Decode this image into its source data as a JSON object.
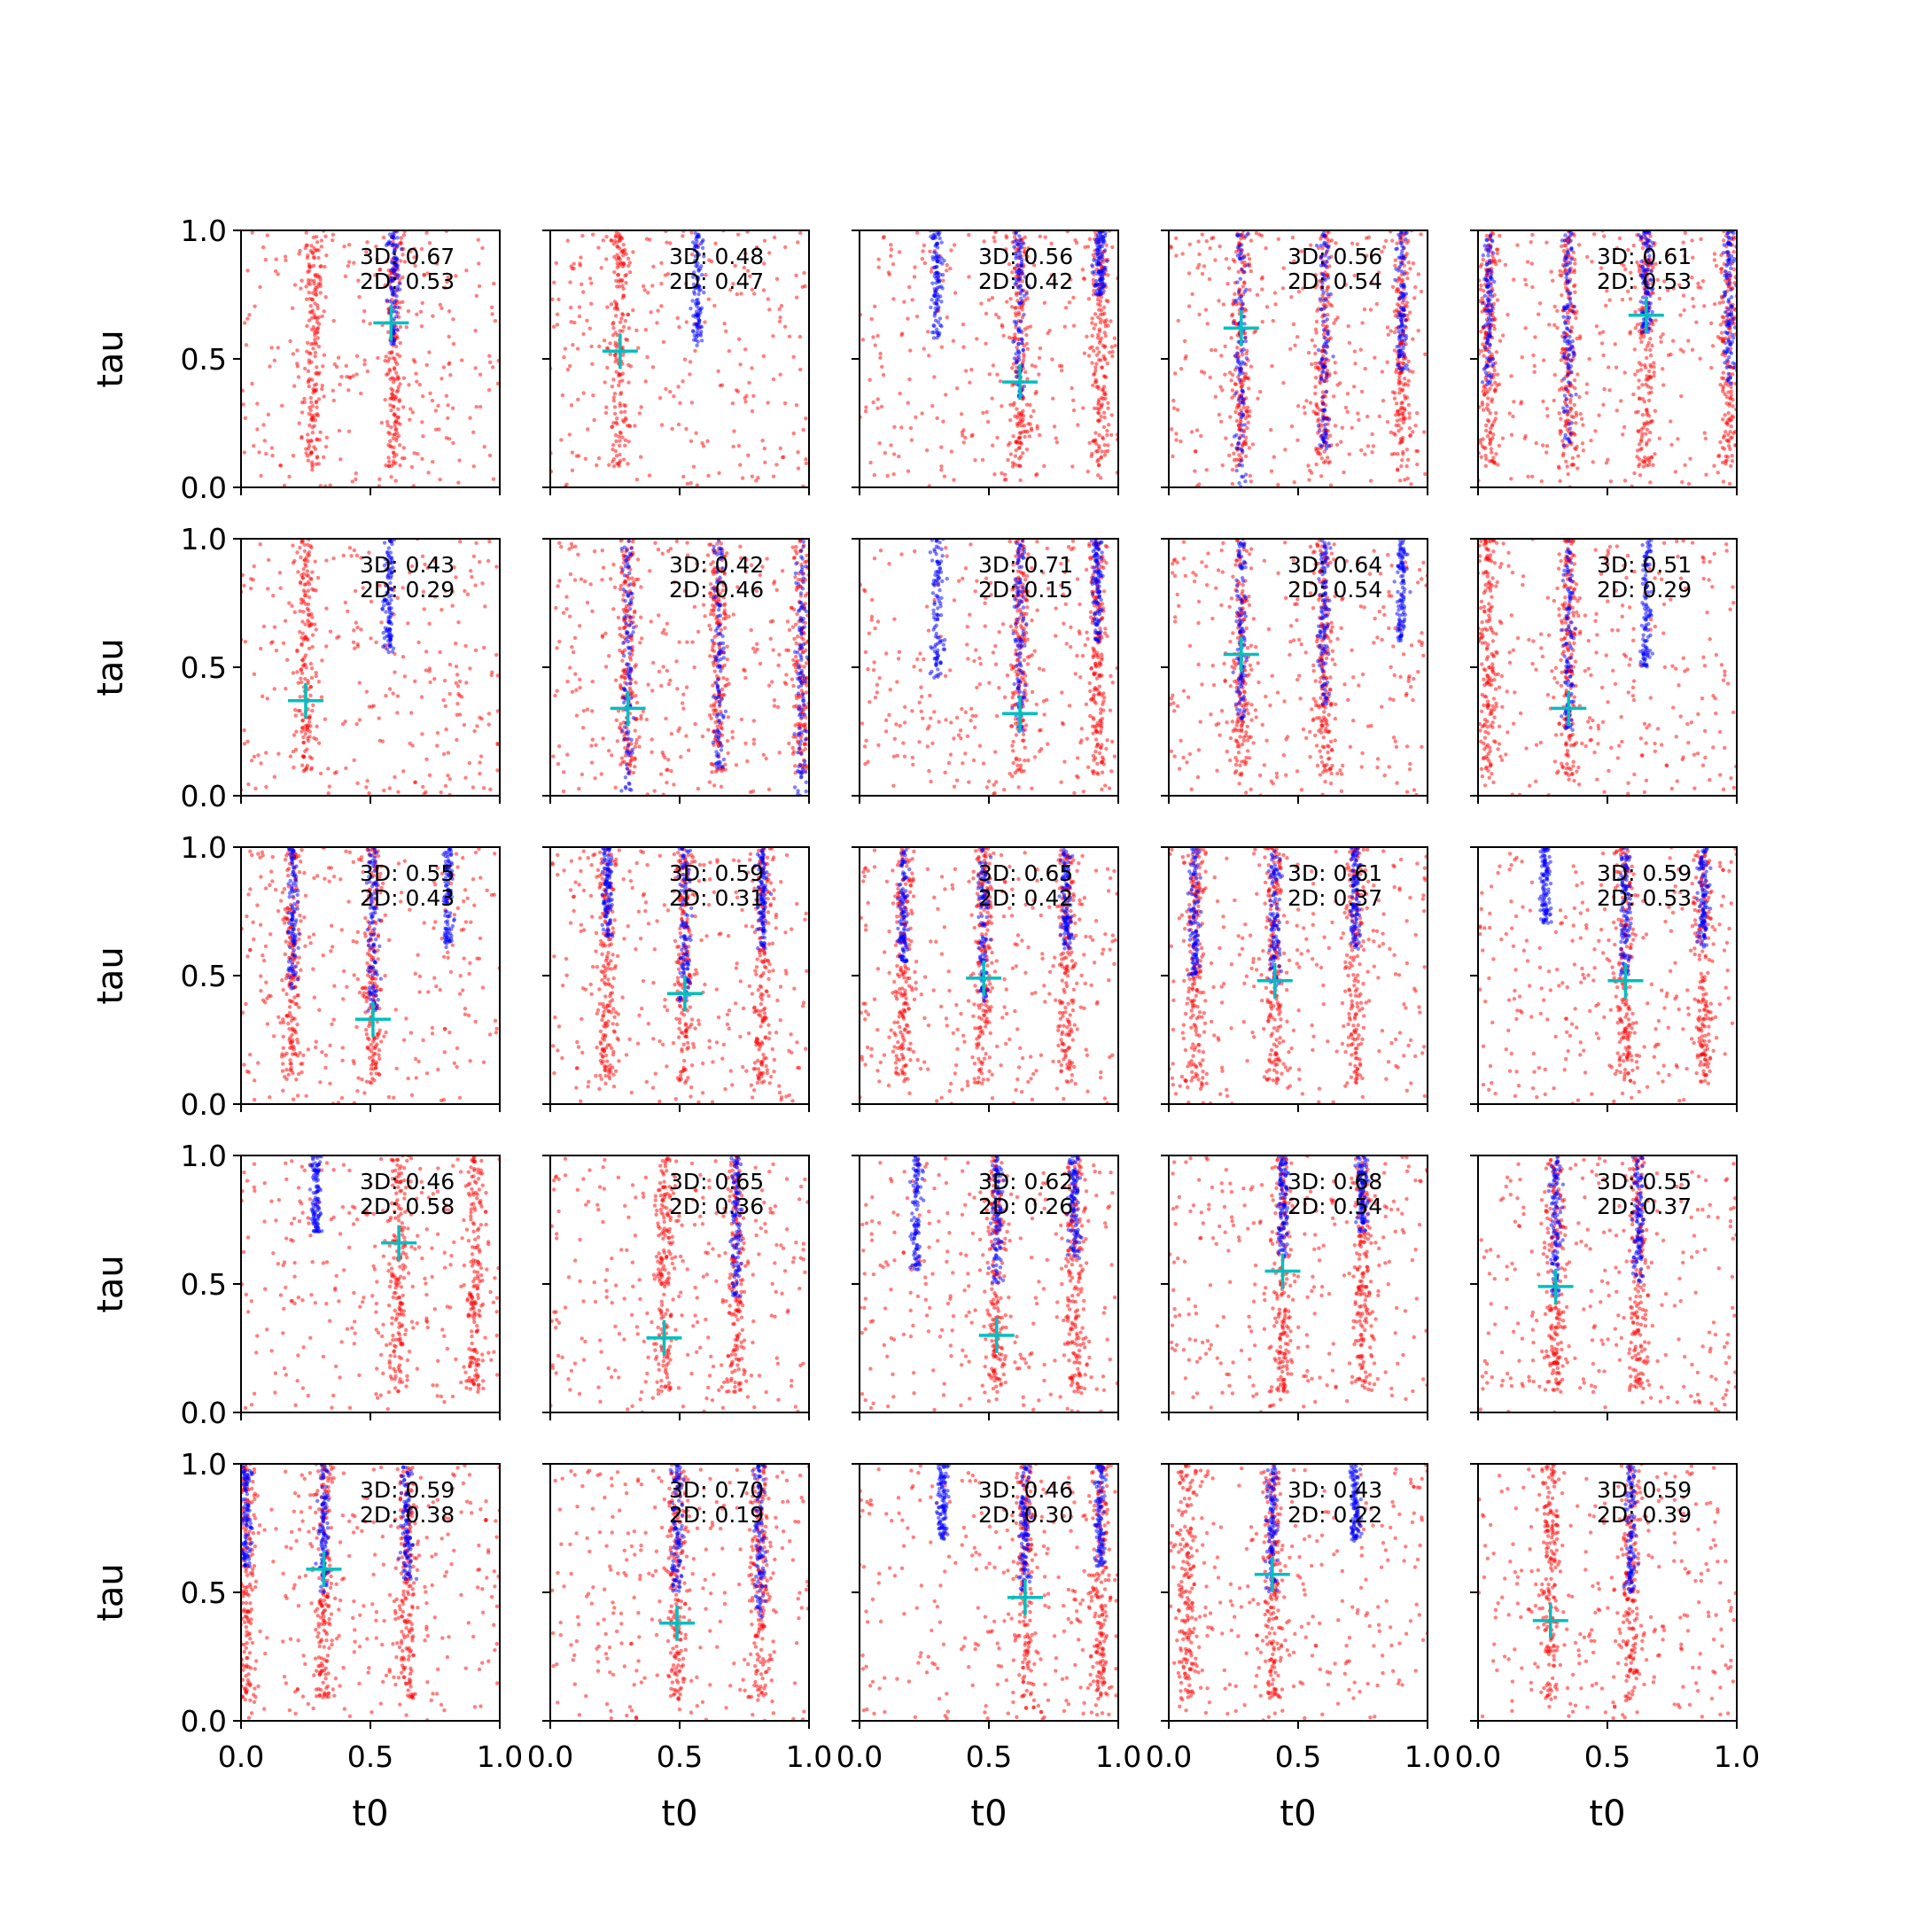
{
  "chart_data": {
    "type": "scatter",
    "layout": "5x5 grid of subplots",
    "xlabel": "t0",
    "ylabel": "tau",
    "xlim": [
      0,
      1
    ],
    "ylim": [
      0,
      1
    ],
    "xticks": [
      "0.0",
      "0.5",
      "1.0"
    ],
    "yticks": [
      "0.0",
      "0.5",
      "1.0"
    ],
    "series_colors": {
      "red": "#ff0000",
      "blue": "#0000ff",
      "marker": "#00bfbf"
    },
    "legend": null,
    "panels": [
      {
        "row": 0,
        "col": 0,
        "annot3d": "3D: 0.67",
        "annot2d": "2D: 0.53",
        "marker": [
          0.58,
          0.64
        ],
        "red": [
          0.28,
          0.59
        ],
        "blue": [
          0.59
        ],
        "blue_low": [
          0.55
        ]
      },
      {
        "row": 0,
        "col": 1,
        "annot3d": "3D: 0.48",
        "annot2d": "2D: 0.47",
        "marker": [
          0.27,
          0.53
        ],
        "red": [
          0.27
        ],
        "blue": [
          0.57
        ],
        "blue_low": [
          0.55
        ]
      },
      {
        "row": 0,
        "col": 2,
        "annot3d": "3D: 0.56",
        "annot2d": "2D: 0.42",
        "marker": [
          0.62,
          0.41
        ],
        "red": [
          0.62,
          0.93
        ],
        "blue": [
          0.3,
          0.62,
          0.93
        ],
        "blue_low": [
          0.58,
          0.35,
          0.75
        ]
      },
      {
        "row": 0,
        "col": 3,
        "annot3d": "3D: 0.56",
        "annot2d": "2D: 0.54",
        "marker": [
          0.28,
          0.62
        ],
        "red": [
          0.28,
          0.6,
          0.9
        ],
        "blue": [
          0.28,
          0.6,
          0.9
        ],
        "blue_low": [
          0.0,
          0.15,
          0.45
        ]
      },
      {
        "row": 0,
        "col": 4,
        "annot3d": "3D: 0.61",
        "annot2d": "2D: 0.53",
        "marker": [
          0.65,
          0.67
        ],
        "red": [
          0.04,
          0.35,
          0.65,
          0.97
        ],
        "blue": [
          0.04,
          0.35,
          0.65,
          0.97
        ],
        "blue_low": [
          0.4,
          0.15,
          0.6,
          0.4
        ]
      },
      {
        "row": 1,
        "col": 0,
        "annot3d": "3D: 0.43",
        "annot2d": "2D: 0.29",
        "marker": [
          0.25,
          0.37
        ],
        "red": [
          0.25
        ],
        "blue": [
          0.57
        ],
        "blue_low": [
          0.55
        ]
      },
      {
        "row": 1,
        "col": 1,
        "annot3d": "3D: 0.42",
        "annot2d": "2D: 0.46",
        "marker": [
          0.3,
          0.34
        ],
        "red": [
          0.3,
          0.65,
          0.97
        ],
        "blue": [
          0.3,
          0.65,
          0.97
        ],
        "blue_low": [
          0.0,
          0.1,
          0.0
        ]
      },
      {
        "row": 1,
        "col": 2,
        "annot3d": "3D: 0.71",
        "annot2d": "2D: 0.15",
        "marker": [
          0.62,
          0.32
        ],
        "red": [
          0.62,
          0.92
        ],
        "blue": [
          0.3,
          0.62,
          0.92
        ],
        "blue_low": [
          0.45,
          0.25,
          0.6
        ]
      },
      {
        "row": 1,
        "col": 3,
        "annot3d": "3D: 0.64",
        "annot2d": "2D: 0.54",
        "marker": [
          0.28,
          0.55
        ],
        "red": [
          0.28,
          0.6
        ],
        "blue": [
          0.28,
          0.6,
          0.9
        ],
        "blue_low": [
          0.3,
          0.35,
          0.6
        ]
      },
      {
        "row": 1,
        "col": 4,
        "annot3d": "3D: 0.51",
        "annot2d": "2D: 0.29",
        "marker": [
          0.35,
          0.34
        ],
        "red": [
          0.04,
          0.35
        ],
        "blue": [
          0.35,
          0.65
        ],
        "blue_low": [
          0.25,
          0.5
        ]
      },
      {
        "row": 2,
        "col": 0,
        "annot3d": "3D: 0.55",
        "annot2d": "2D: 0.43",
        "marker": [
          0.51,
          0.33
        ],
        "red": [
          0.2,
          0.51
        ],
        "blue": [
          0.2,
          0.51,
          0.8
        ],
        "blue_low": [
          0.45,
          0.35,
          0.6
        ]
      },
      {
        "row": 2,
        "col": 1,
        "annot3d": "3D: 0.59",
        "annot2d": "2D: 0.31",
        "marker": [
          0.52,
          0.43
        ],
        "red": [
          0.22,
          0.52,
          0.82
        ],
        "blue": [
          0.22,
          0.52,
          0.82
        ],
        "blue_low": [
          0.65,
          0.4,
          0.6
        ]
      },
      {
        "row": 2,
        "col": 2,
        "annot3d": "3D: 0.65",
        "annot2d": "2D: 0.42",
        "marker": [
          0.48,
          0.49
        ],
        "red": [
          0.17,
          0.48,
          0.8
        ],
        "blue": [
          0.17,
          0.48,
          0.8
        ],
        "blue_low": [
          0.55,
          0.4,
          0.6
        ]
      },
      {
        "row": 2,
        "col": 3,
        "annot3d": "3D: 0.61",
        "annot2d": "2D: 0.37",
        "marker": [
          0.41,
          0.48
        ],
        "red": [
          0.1,
          0.41,
          0.72
        ],
        "blue": [
          0.1,
          0.41,
          0.72
        ],
        "blue_low": [
          0.5,
          0.45,
          0.6
        ]
      },
      {
        "row": 2,
        "col": 4,
        "annot3d": "3D: 0.59",
        "annot2d": "2D: 0.53",
        "marker": [
          0.57,
          0.48
        ],
        "red": [
          0.57,
          0.87
        ],
        "blue": [
          0.26,
          0.57,
          0.87
        ],
        "blue_low": [
          0.7,
          0.5,
          0.6
        ]
      },
      {
        "row": 3,
        "col": 0,
        "annot3d": "3D: 0.46",
        "annot2d": "2D: 0.58",
        "marker": [
          0.61,
          0.66
        ],
        "red": [
          0.61,
          0.9
        ],
        "blue": [
          0.29
        ],
        "blue_low": [
          0.7
        ]
      },
      {
        "row": 3,
        "col": 1,
        "annot3d": "3D: 0.65",
        "annot2d": "2D: 0.36",
        "marker": [
          0.44,
          0.29
        ],
        "red": [
          0.44,
          0.72
        ],
        "blue": [
          0.72
        ],
        "blue_low": [
          0.45
        ]
      },
      {
        "row": 3,
        "col": 2,
        "annot3d": "3D: 0.62",
        "annot2d": "2D: 0.26",
        "marker": [
          0.53,
          0.3
        ],
        "red": [
          0.53,
          0.83
        ],
        "blue": [
          0.22,
          0.53,
          0.83
        ],
        "blue_low": [
          0.55,
          0.5,
          0.6
        ]
      },
      {
        "row": 3,
        "col": 3,
        "annot3d": "3D: 0.68",
        "annot2d": "2D: 0.54",
        "marker": [
          0.44,
          0.55
        ],
        "red": [
          0.44,
          0.75
        ],
        "blue": [
          0.44,
          0.75
        ],
        "blue_low": [
          0.6,
          0.7
        ]
      },
      {
        "row": 3,
        "col": 4,
        "annot3d": "3D: 0.55",
        "annot2d": "2D: 0.37",
        "marker": [
          0.3,
          0.49
        ],
        "red": [
          0.3,
          0.62
        ],
        "blue": [
          0.3,
          0.62
        ],
        "blue_low": [
          0.45,
          0.5
        ]
      },
      {
        "row": 4,
        "col": 0,
        "annot3d": "3D: 0.59",
        "annot2d": "2D: 0.38",
        "marker": [
          0.32,
          0.59
        ],
        "red": [
          0.02,
          0.32,
          0.64
        ],
        "blue": [
          0.02,
          0.32,
          0.64
        ],
        "blue_low": [
          0.6,
          0.5,
          0.55
        ]
      },
      {
        "row": 4,
        "col": 1,
        "annot3d": "3D: 0.70",
        "annot2d": "2D: 0.19",
        "marker": [
          0.49,
          0.38
        ],
        "red": [
          0.49,
          0.81
        ],
        "blue": [
          0.49,
          0.81
        ],
        "blue_low": [
          0.5,
          0.4
        ]
      },
      {
        "row": 4,
        "col": 2,
        "annot3d": "3D: 0.46",
        "annot2d": "2D: 0.30",
        "marker": [
          0.64,
          0.48
        ],
        "red": [
          0.64,
          0.93
        ],
        "blue": [
          0.32,
          0.64,
          0.93
        ],
        "blue_low": [
          0.7,
          0.5,
          0.6
        ]
      },
      {
        "row": 4,
        "col": 3,
        "annot3d": "3D: 0.43",
        "annot2d": "2D: 0.22",
        "marker": [
          0.4,
          0.57
        ],
        "red": [
          0.07,
          0.4
        ],
        "blue": [
          0.4,
          0.72
        ],
        "blue_low": [
          0.5,
          0.7
        ]
      },
      {
        "row": 4,
        "col": 4,
        "annot3d": "3D: 0.59",
        "annot2d": "2D: 0.39",
        "marker": [
          0.28,
          0.39
        ],
        "red": [
          0.28,
          0.59
        ],
        "blue": [
          0.59
        ],
        "blue_low": [
          0.5
        ]
      }
    ]
  }
}
